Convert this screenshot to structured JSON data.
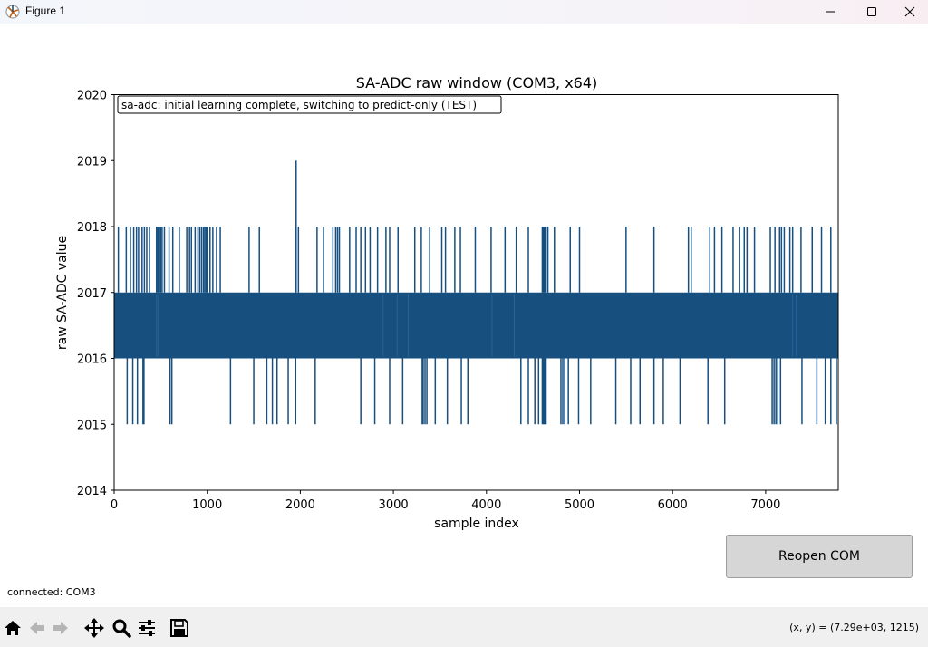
{
  "window": {
    "title": "Figure 1"
  },
  "figure": {
    "status_text": "connected: COM3",
    "button_label": "Reopen COM"
  },
  "toolbar": {
    "icons": [
      "home-icon",
      "back-arrow-icon",
      "forward-arrow-icon",
      "pan-icon",
      "zoom-icon",
      "configure-subplots-icon",
      "save-icon"
    ],
    "coords": "(x, y) = (7.29e+03, 1215)"
  },
  "chart_data": {
    "type": "line",
    "title": "SA-ADC raw window (COM3, x64)",
    "xlabel": "sample index",
    "ylabel": "raw SA-ADC value",
    "xlim": [
      0,
      7780
    ],
    "ylim": [
      2014,
      2020
    ],
    "xticks": [
      0,
      1000,
      2000,
      3000,
      4000,
      5000,
      6000,
      7000
    ],
    "yticks": [
      2014,
      2015,
      2016,
      2017,
      2018,
      2019,
      2020
    ],
    "annotation": "sa-adc: initial learning complete, switching to predict-only (TEST)",
    "line_color": "#174f7f",
    "grid": false,
    "series": [
      {
        "band_low": 2016,
        "band_high": 2017,
        "high_spikes": [
          45,
          130,
          175,
          210,
          240,
          262,
          300,
          325,
          350,
          380,
          455,
          470,
          485,
          500,
          515,
          540,
          590,
          630,
          700,
          780,
          810,
          830,
          870,
          900,
          920,
          940,
          960,
          975,
          990,
          1000,
          1030,
          1060,
          1100,
          1140,
          1450,
          1560,
          1950,
          1980,
          2180,
          2250,
          2350,
          2380,
          2400,
          2420,
          2530,
          2600,
          2650,
          2700,
          2750,
          2830,
          2920,
          2960,
          3050,
          3230,
          3300,
          3390,
          3520,
          3560,
          3660,
          3720,
          3880,
          4050,
          4200,
          4320,
          4450,
          4600,
          4610,
          4620,
          4630,
          4640,
          4660,
          4730,
          4900,
          5000,
          5500,
          5800,
          6170,
          6200,
          6400,
          6450,
          6530,
          6650,
          6720,
          6770,
          6800,
          6880,
          7050,
          7100,
          7150,
          7170,
          7200,
          7260,
          7290,
          7380,
          7500,
          7600,
          7700
        ],
        "peak": {
          "x": 1955,
          "y": 2019
        },
        "low_spikes": [
          140,
          200,
          250,
          310,
          320,
          600,
          620,
          1250,
          1500,
          1640,
          1700,
          1750,
          1870,
          1950,
          2160,
          2650,
          2800,
          2960,
          3100,
          3310,
          3320,
          3340,
          3360,
          3450,
          3580,
          3730,
          3800,
          4370,
          4450,
          4520,
          4560,
          4600,
          4610,
          4620,
          4630,
          4640,
          4800,
          4820,
          4840,
          4880,
          4990,
          5120,
          5390,
          5550,
          5650,
          5800,
          5900,
          6080,
          6380,
          6560,
          7070,
          7090,
          7110,
          7130,
          7160,
          7390,
          7550,
          7640,
          7700,
          7760
        ]
      }
    ]
  }
}
